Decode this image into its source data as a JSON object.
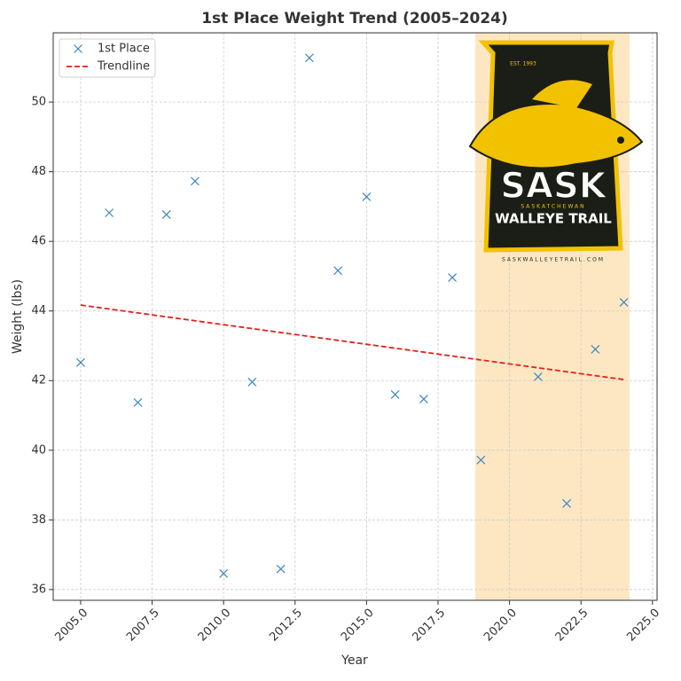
{
  "chart_data": {
    "type": "scatter",
    "title": "1st Place Weight Trend (2005–2024)",
    "x_label": "Year",
    "y_label": "Weight (lbs)",
    "xlim": [
      2004.04,
      2025.16
    ],
    "ylim": [
      35.69,
      51.99
    ],
    "xticks": [
      {
        "value": 2005,
        "label": "2005.0"
      },
      {
        "value": 2007.5,
        "label": "2007.5"
      },
      {
        "value": 2010,
        "label": "2010.0"
      },
      {
        "value": 2012.5,
        "label": "2012.5"
      },
      {
        "value": 2015,
        "label": "2015.0"
      },
      {
        "value": 2017.5,
        "label": "2017.5"
      },
      {
        "value": 2020,
        "label": "2020.0"
      },
      {
        "value": 2022.5,
        "label": "2022.5"
      },
      {
        "value": 2025,
        "label": "2025.0"
      }
    ],
    "yticks": [
      36,
      38,
      40,
      42,
      44,
      46,
      48,
      50
    ],
    "grid": true,
    "legend": "upper left",
    "highlight": [
      2018.8,
      2024.2
    ],
    "highlight_color": "#fde3b8",
    "series": [
      {
        "name": "1st Place",
        "color": "#3b87c6",
        "marker": "x",
        "x": [
          2005,
          2006,
          2007,
          2008,
          2009,
          2010,
          2011,
          2012,
          2013,
          2014,
          2015,
          2016,
          2017,
          2018,
          2019,
          2021,
          2022,
          2023,
          2024
        ],
        "values": [
          42.52,
          46.82,
          41.37,
          46.77,
          47.73,
          36.46,
          41.96,
          36.59,
          51.27,
          45.16,
          47.28,
          41.6,
          41.47,
          44.96,
          39.72,
          42.11,
          38.47,
          42.9,
          44.25
        ]
      },
      {
        "name": "Trendline",
        "color": "#e3211c",
        "style": "dashed",
        "x": [
          2005,
          2024
        ],
        "values": [
          44.17,
          42.03
        ]
      }
    ]
  },
  "logo": {
    "est": "EST. 1993",
    "name": "SASK",
    "region": "SASKATCHEWAN",
    "trail": "WALLEYE TRAIL",
    "url": "SASKWALLEYETRAIL.COM"
  }
}
